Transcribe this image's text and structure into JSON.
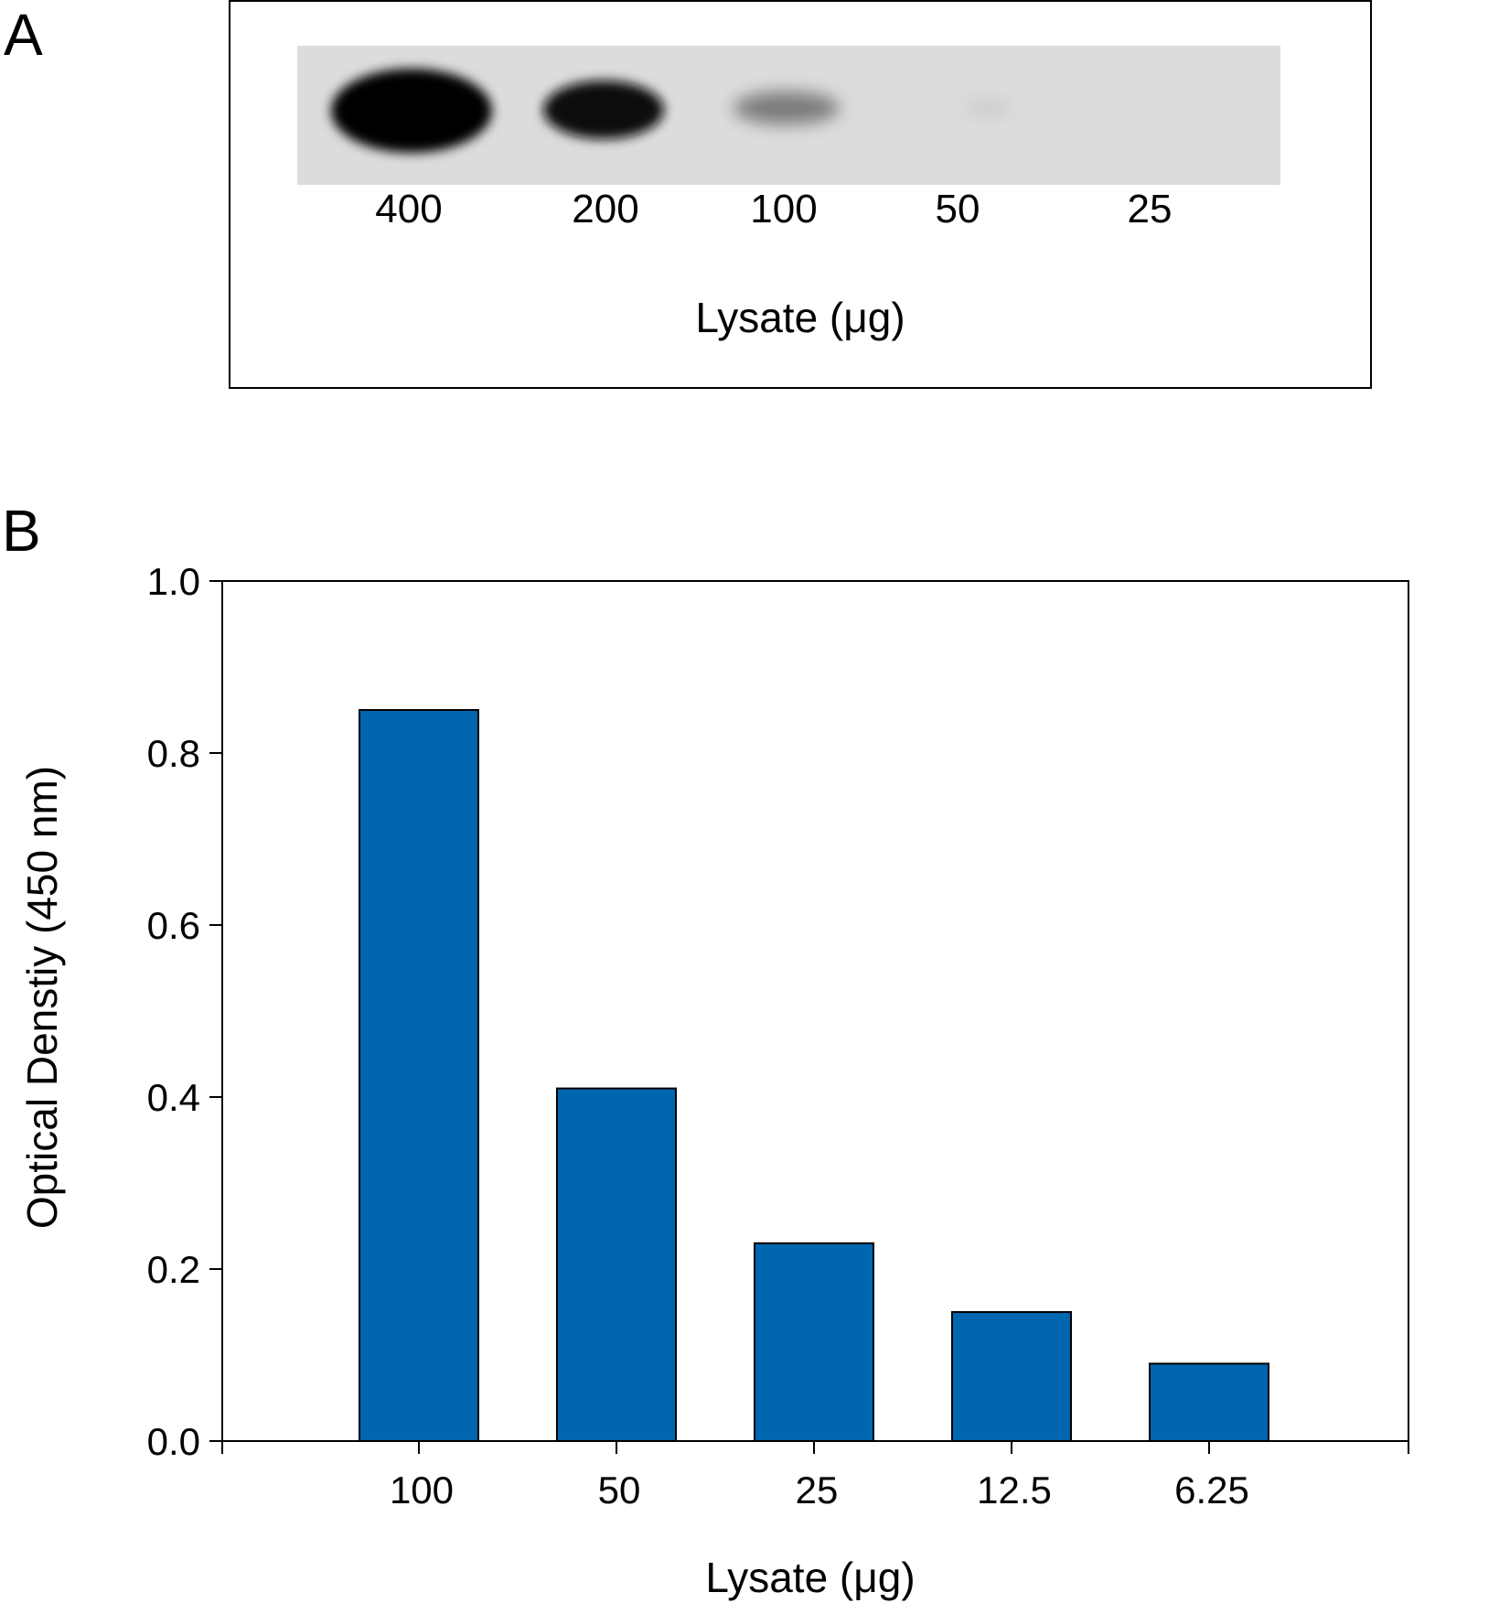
{
  "panel_a": {
    "letter": "A",
    "lane_labels": [
      "400",
      "200",
      "100",
      "50",
      "25"
    ],
    "xlabel": "Lysate (μg)"
  },
  "panel_b": {
    "letter": "B"
  },
  "chart_data": {
    "type": "bar",
    "categories": [
      "100",
      "50",
      "25",
      "12.5",
      "6.25"
    ],
    "values": [
      0.85,
      0.41,
      0.23,
      0.15,
      0.09
    ],
    "title": "",
    "xlabel": "Lysate (μg)",
    "ylabel": "Optical Denstiy (450 nm)",
    "ylim": [
      0.0,
      1.0
    ],
    "yticks": [
      "0.0",
      "0.2",
      "0.4",
      "0.6",
      "0.8",
      "1.0"
    ],
    "bar_color": "#0066b0",
    "grid": false
  }
}
